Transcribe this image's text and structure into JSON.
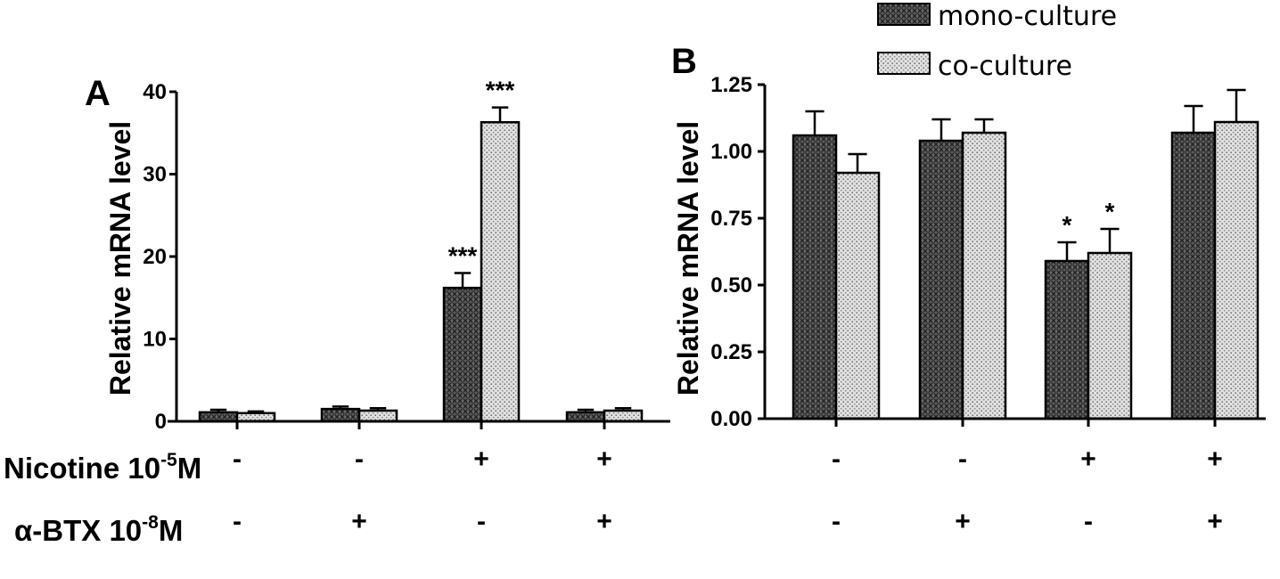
{
  "legend": [
    {
      "label": "mono-culture",
      "pattern": "dense-crosshatch"
    },
    {
      "label": "co-culture",
      "pattern": "light-dots"
    }
  ],
  "row_labels": {
    "nicotine": {
      "prefix": "Nicotine 10",
      "exponent": "-5",
      "suffix": "M"
    },
    "btx": {
      "prefix": "α-BTX 10",
      "exponent": "-8",
      "suffix": "M"
    }
  },
  "colors": {
    "mono_fill": "#5a5a5a",
    "co_fill": "#d8d8d8",
    "axis": "#000000"
  },
  "chart_data": [
    {
      "panel_label": "A",
      "type": "bar",
      "ylabel": "Relative mRNA level",
      "ylim": [
        0,
        40
      ],
      "yticks": [
        "0",
        "10",
        "20",
        "30",
        "40"
      ],
      "groups": [
        {
          "nicotine": "-",
          "btx": "-"
        },
        {
          "nicotine": "-",
          "btx": "+"
        },
        {
          "nicotine": "+",
          "btx": "-"
        },
        {
          "nicotine": "+",
          "btx": "+"
        }
      ],
      "series": [
        {
          "name": "mono-culture",
          "values": [
            1.1,
            1.5,
            16.2,
            1.1
          ],
          "errors": [
            0.3,
            0.3,
            1.8,
            0.3
          ],
          "annotations": [
            "",
            "",
            "***",
            ""
          ]
        },
        {
          "name": "co-culture",
          "values": [
            1.0,
            1.3,
            36.3,
            1.3
          ],
          "errors": [
            0.2,
            0.3,
            1.8,
            0.3
          ],
          "annotations": [
            "",
            "",
            "***",
            ""
          ]
        }
      ]
    },
    {
      "panel_label": "B",
      "type": "bar",
      "ylabel": "Relative mRNA level",
      "ylim": [
        0,
        1.25
      ],
      "yticks": [
        "0.00",
        "0.25",
        "0.50",
        "0.75",
        "1.00",
        "1.25"
      ],
      "groups": [
        {
          "nicotine": "-",
          "btx": "-"
        },
        {
          "nicotine": "-",
          "btx": "+"
        },
        {
          "nicotine": "+",
          "btx": "-"
        },
        {
          "nicotine": "+",
          "btx": "+"
        }
      ],
      "series": [
        {
          "name": "mono-culture",
          "values": [
            1.06,
            1.04,
            0.59,
            1.07
          ],
          "errors": [
            0.09,
            0.08,
            0.07,
            0.1
          ],
          "annotations": [
            "",
            "",
            "*",
            ""
          ]
        },
        {
          "name": "co-culture",
          "values": [
            0.92,
            1.07,
            0.62,
            1.11
          ],
          "errors": [
            0.07,
            0.05,
            0.09,
            0.12
          ],
          "annotations": [
            "",
            "",
            "*",
            ""
          ]
        }
      ]
    }
  ]
}
